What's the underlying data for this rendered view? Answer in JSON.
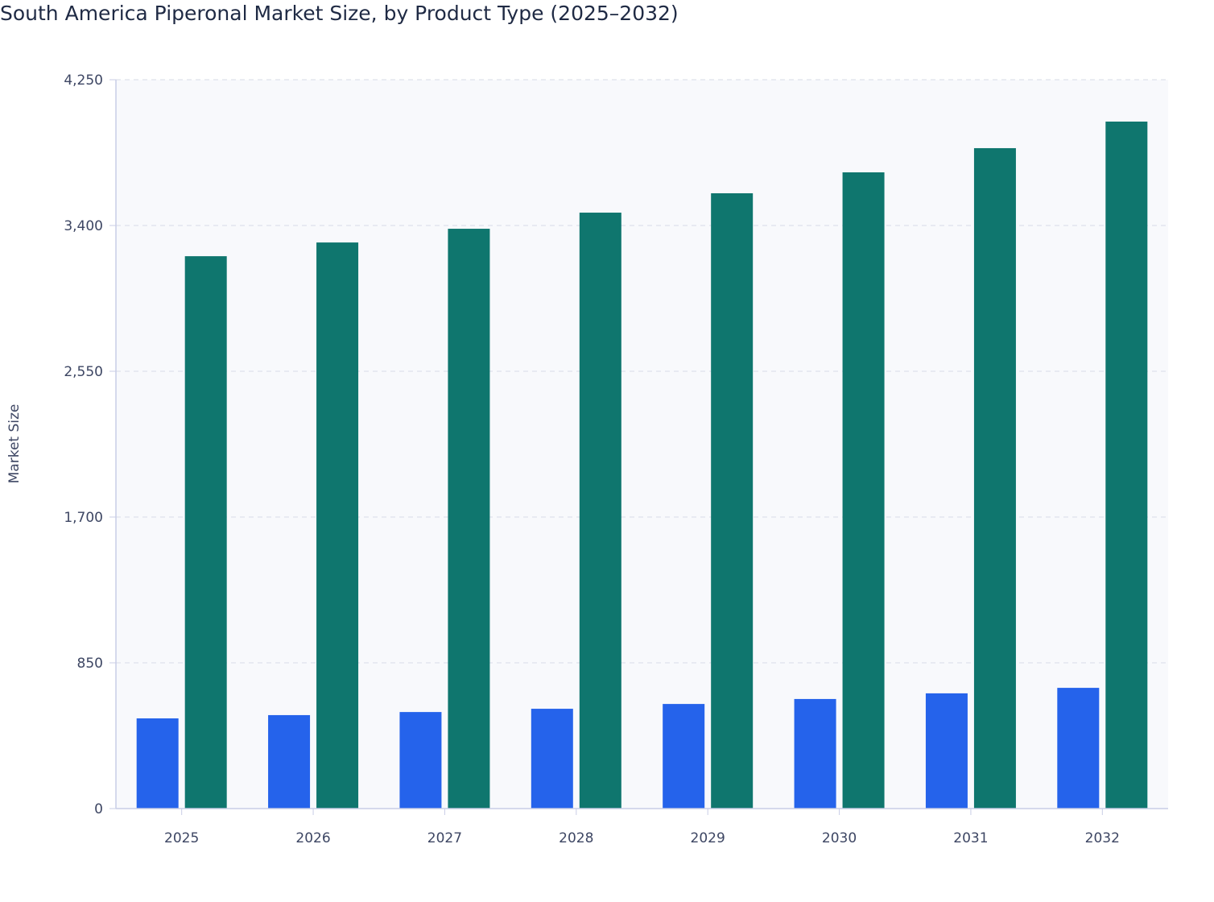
{
  "chart_data": {
    "type": "bar",
    "title": "South America Piperonal Market Size, by Product Type (2025–2032)",
    "xlabel": "",
    "ylabel": "Market Size",
    "ylim": [
      0,
      4250
    ],
    "yticks": [
      0,
      850,
      1700,
      2550,
      3400,
      4250
    ],
    "ytick_labels": [
      "0",
      "850",
      "1,700",
      "2,550",
      "3,400",
      "4,250"
    ],
    "categories": [
      "2025",
      "2026",
      "2027",
      "2028",
      "2029",
      "2030",
      "2031",
      "2032"
    ],
    "grid": true,
    "legend": "none",
    "series": [
      {
        "values": [
          526,
          545,
          563,
          582,
          610,
          639,
          672,
          704
        ],
        "color": "#2563eb"
      },
      {
        "values": [
          3221,
          3301,
          3381,
          3475,
          3588,
          3710,
          3851,
          4006
        ],
        "color": "#0f766e"
      }
    ],
    "colors": {
      "plot_background": "#f8f9fc",
      "grid": "#e3e6ee",
      "axis": "#c8cde6",
      "text": "#3d4663",
      "title": "#1f2a44"
    }
  }
}
